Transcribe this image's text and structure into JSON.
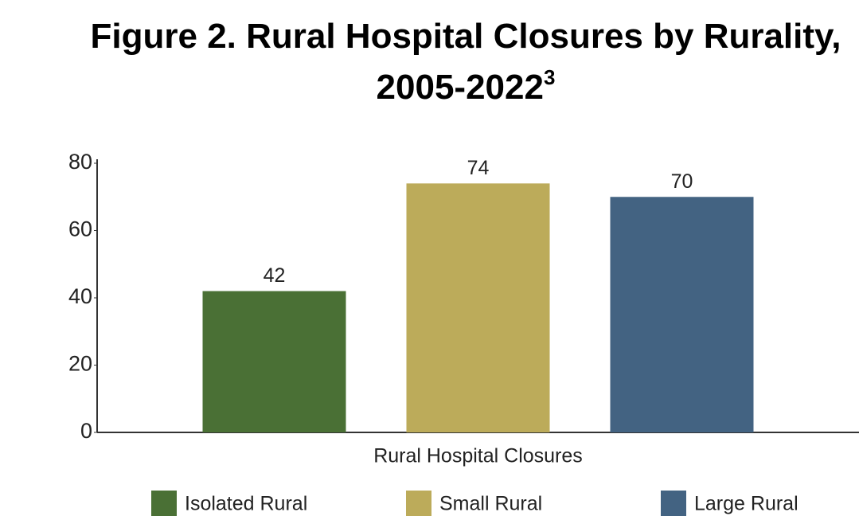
{
  "chart_data": {
    "type": "bar",
    "title": "Figure 2. Rural Hospital Closures by Rurality, 2005-2022",
    "title_note": "3",
    "categories": [
      "Rural Hospital Closures"
    ],
    "series": [
      {
        "name": "Isolated Rural",
        "color": "#4a7035",
        "values": [
          42
        ]
      },
      {
        "name": "Small Rural",
        "color": "#bcab5a",
        "values": [
          74
        ]
      },
      {
        "name": "Large Rural",
        "color": "#436382",
        "values": [
          70
        ]
      }
    ],
    "ylim": [
      0,
      80
    ],
    "yticks": [
      0,
      20,
      40,
      60,
      80
    ],
    "grid": false,
    "legend": "bottom"
  }
}
